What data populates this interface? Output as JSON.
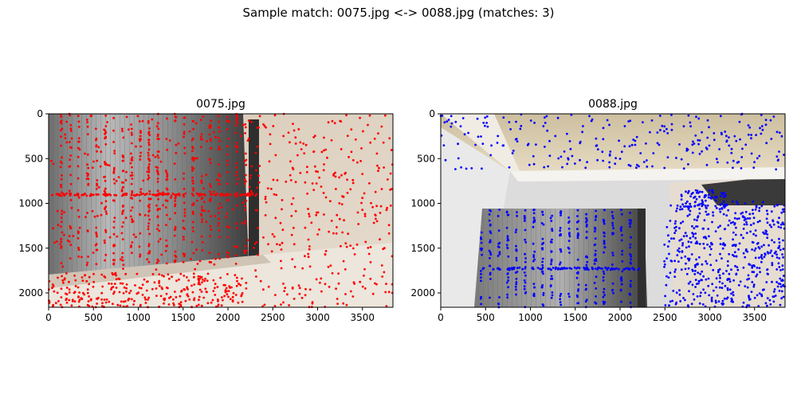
{
  "figure": {
    "suptitle": "Sample match: 0075.jpg <-> 0088.jpg (matches: 3)"
  },
  "chart_data": [
    {
      "type": "scatter",
      "title": "0075.jpg",
      "xlim": [
        0,
        3840
      ],
      "ylim": [
        2160,
        0
      ],
      "xticks": [
        0,
        500,
        1000,
        1500,
        2000,
        2500,
        3000,
        3500
      ],
      "yticks": [
        0,
        500,
        1000,
        1500,
        2000
      ],
      "marker_color": "#ff0000",
      "background": "photo: window blinds and wall",
      "grid": false
    },
    {
      "type": "scatter",
      "title": "0088.jpg",
      "xlim": [
        0,
        3840
      ],
      "ylim": [
        2160,
        0
      ],
      "xticks": [
        0,
        500,
        1000,
        1500,
        2000,
        2500,
        3000,
        3500
      ],
      "yticks": [
        0,
        500,
        1000,
        1500,
        2000
      ],
      "marker_color": "#0000ff",
      "background": "photo: ceiling corner and window blinds",
      "grid": false
    }
  ]
}
